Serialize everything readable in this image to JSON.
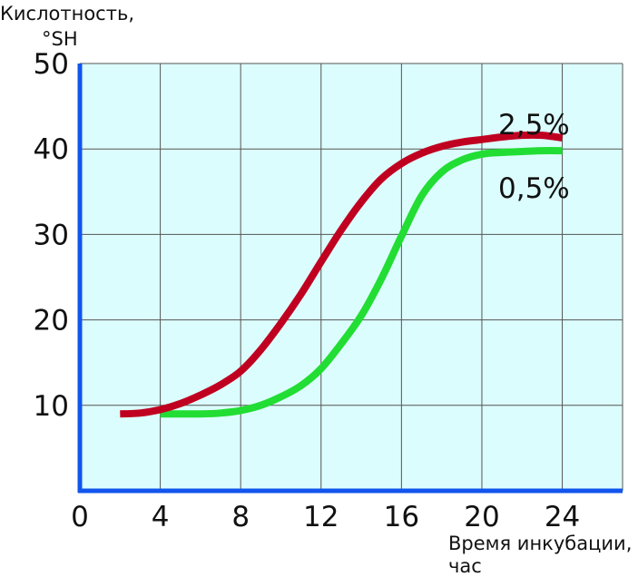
{
  "chart_data": {
    "type": "line",
    "title": "",
    "ylabel": [
      "Кислотность,",
      "°SH"
    ],
    "xlabel": [
      "Время инкубации,",
      "час"
    ],
    "xlim": [
      0,
      27
    ],
    "ylim": [
      0,
      50
    ],
    "xticks": [
      0,
      4,
      8,
      12,
      16,
      20,
      24
    ],
    "yticks": [
      10,
      20,
      30,
      40,
      50
    ],
    "grid": true,
    "background_color": "#dcfdfd",
    "axis_color": "#1155ee",
    "grid_color": "#555555",
    "series": [
      {
        "name": "2,5%",
        "color": "#c00020",
        "x": [
          2,
          3,
          4,
          5,
          6,
          7,
          8,
          9,
          10,
          11,
          12,
          13,
          14,
          15,
          16,
          17,
          18,
          19,
          20,
          21,
          22,
          23,
          24
        ],
        "y": [
          9.0,
          9.1,
          9.5,
          10.2,
          11.2,
          12.4,
          14.0,
          16.5,
          19.6,
          23.0,
          26.8,
          30.5,
          33.8,
          36.5,
          38.3,
          39.5,
          40.3,
          40.8,
          41.1,
          41.4,
          41.6,
          41.6,
          41.3
        ]
      },
      {
        "name": "0,5%",
        "color": "#22dd33",
        "x": [
          4,
          5,
          6,
          7,
          8,
          9,
          10,
          11,
          12,
          13,
          14,
          15,
          16,
          17,
          18,
          19,
          20,
          21,
          22,
          23,
          24
        ],
        "y": [
          9.0,
          9.0,
          9.0,
          9.1,
          9.4,
          10.0,
          11.0,
          12.3,
          14.3,
          17.2,
          20.5,
          24.8,
          29.8,
          34.5,
          37.3,
          38.7,
          39.4,
          39.6,
          39.7,
          39.8,
          39.8
        ]
      }
    ]
  }
}
